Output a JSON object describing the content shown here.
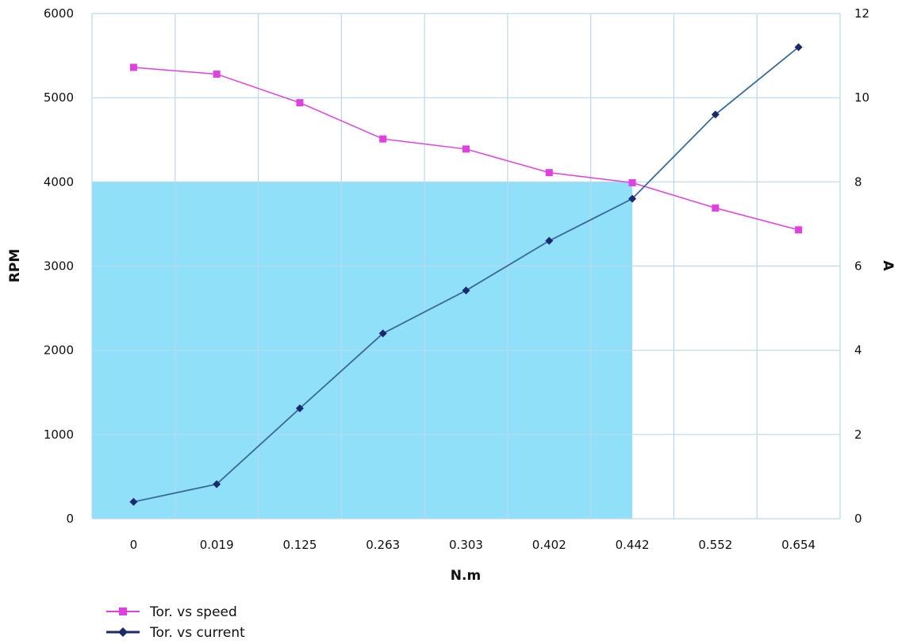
{
  "chart_data": {
    "type": "line",
    "categories": [
      "0",
      "0.019",
      "0.125",
      "0.263",
      "0.303",
      "0.402",
      "0.442",
      "0.552",
      "0.654"
    ],
    "xlabel": "N.m",
    "ylabel": "RPM",
    "y2label": "A",
    "ylim": [
      0,
      6000
    ],
    "y2lim": [
      0,
      12
    ],
    "y_ticks": [
      "0",
      "1000",
      "2000",
      "3000",
      "4000",
      "5000",
      "6000"
    ],
    "y2_ticks": [
      "0",
      "2",
      "4",
      "6",
      "8",
      "10",
      "12"
    ],
    "grid": true,
    "legend_position": "bottom-left",
    "shaded_region": {
      "x_from": "0",
      "x_to": "0.442",
      "y_to": 4000,
      "color": "#8fe0f8"
    },
    "series": [
      {
        "name": "Tor. vs speed",
        "axis": "left",
        "marker": "square",
        "color": "#e040e0",
        "marker_color": "#e040e0",
        "values": [
          5360,
          5280,
          4940,
          4510,
          4390,
          4110,
          3990,
          3690,
          3430
        ]
      },
      {
        "name": "Tor. vs current",
        "axis": "right",
        "marker": "diamond",
        "color": "#3a6a9a",
        "marker_color": "#1a2a6c",
        "values": [
          0.4,
          0.82,
          2.62,
          4.4,
          5.42,
          6.6,
          7.6,
          9.6,
          11.2
        ]
      }
    ]
  }
}
